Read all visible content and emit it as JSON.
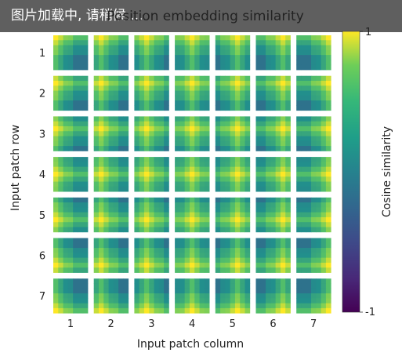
{
  "loading_banner": {
    "text": "图片加载中, 请稍候...."
  },
  "chart_data": {
    "type": "heatmap",
    "title": "Position embedding similarity",
    "xlabel": "Input patch column",
    "ylabel": "Input patch row",
    "x_ticks": [
      "1",
      "2",
      "3",
      "4",
      "5",
      "6",
      "7"
    ],
    "y_ticks": [
      "1",
      "2",
      "3",
      "4",
      "5",
      "6",
      "7"
    ],
    "colorbar": {
      "label": "Cosine similarity",
      "min": -1,
      "max": 1,
      "tick_labels": [
        "1",
        "-1"
      ],
      "colormap": "viridis"
    },
    "grid": {
      "rows": 7,
      "cols": 7,
      "cell_rows": 7,
      "cell_cols": 7
    }
  },
  "colors": {
    "viridis_low": "#440154",
    "viridis_mid": "#21918c",
    "viridis_high": "#fde725"
  }
}
